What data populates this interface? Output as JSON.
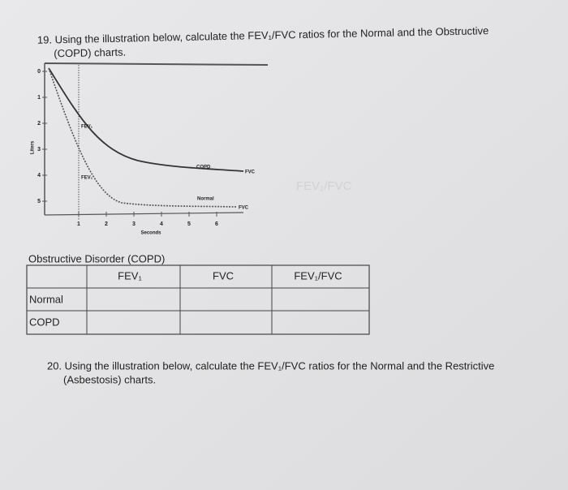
{
  "question_19": {
    "text": "19. Using the illustration below, calculate the FEV₁/FVC ratios for the Normal and the Obstructive",
    "text_cont": "(COPD) charts."
  },
  "figure": {
    "y_label": "Liters",
    "y_ticks": [
      "0",
      "1",
      "2",
      "3",
      "4",
      "5"
    ],
    "x_label": "Seconds",
    "x_ticks": [
      "1",
      "2",
      "3",
      "4",
      "5",
      "6"
    ],
    "labels": {
      "fev1_copd": "FEV₁",
      "fev1_normal": "FEV₁",
      "copd": "COPD",
      "normal": "Normal",
      "fvc_copd": "FVC",
      "fvc_normal": "FVC"
    }
  },
  "bleed_through": "FEV₁/FVC",
  "table": {
    "caption": "Obstructive Disorder (COPD)",
    "headers": [
      "FEV₁",
      "FVC",
      "FEV₁/FVC"
    ],
    "rows": [
      "Normal",
      "COPD"
    ]
  },
  "question_20": {
    "text": "20. Using the illustration below, calculate the FEV₁/FVC ratios for the Normal and the Restrictive",
    "text_cont": "(Asbestosis) charts."
  }
}
